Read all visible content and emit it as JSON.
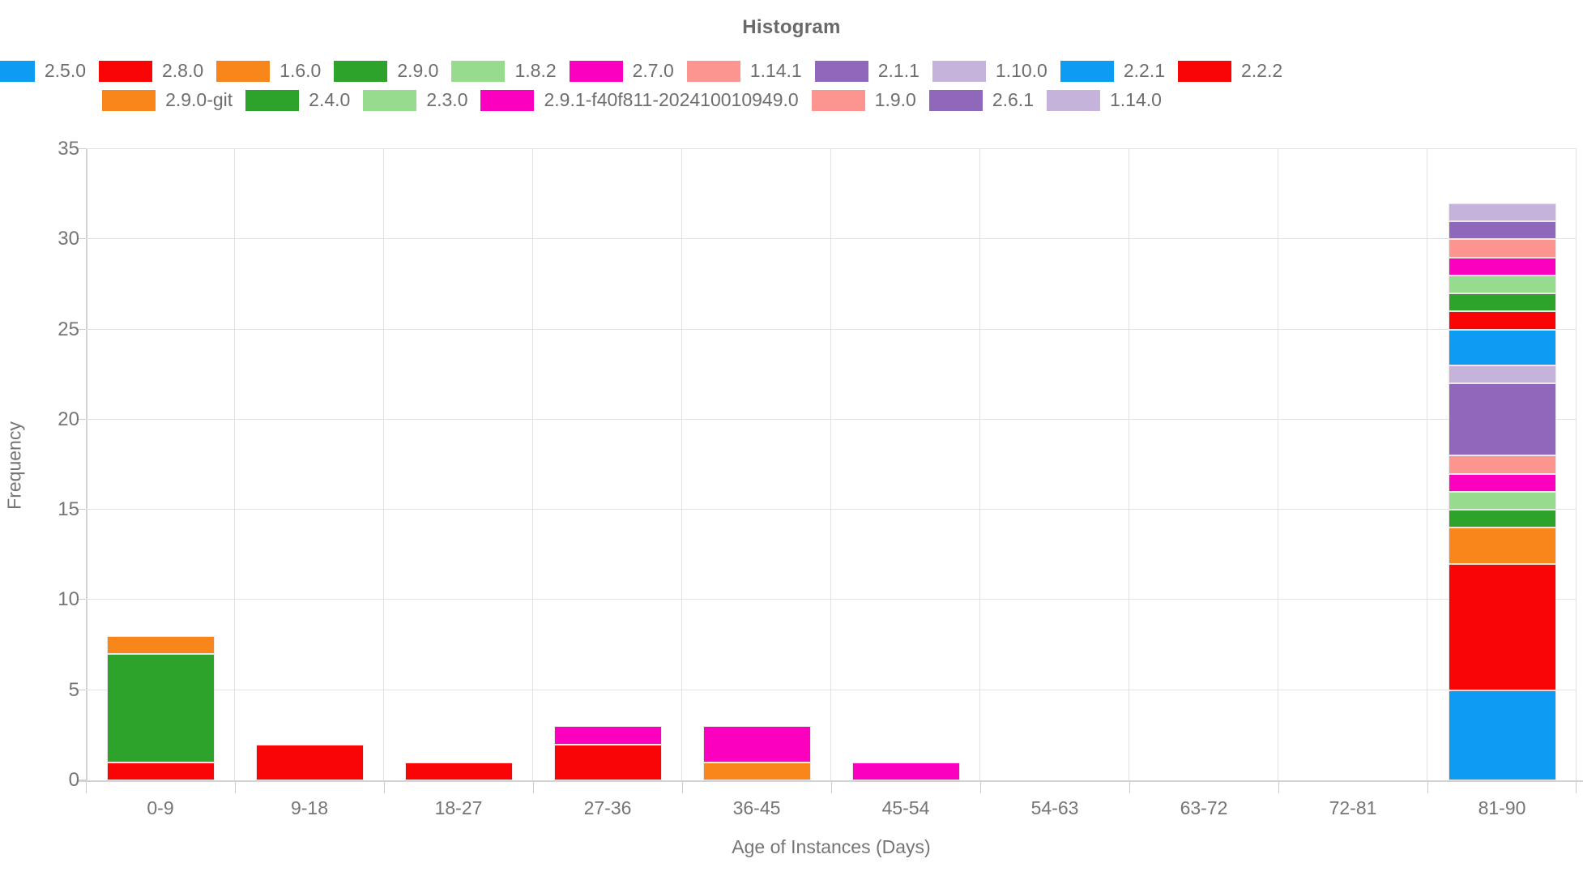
{
  "chart_data": {
    "type": "bar",
    "stacked": true,
    "title": "Histogram",
    "xlabel": "Age of Instances (Days)",
    "ylabel": "Frequency",
    "ylim": [
      0,
      35
    ],
    "yticks": [
      0,
      5,
      10,
      15,
      20,
      25,
      30,
      35
    ],
    "grid": true,
    "legend_position": "top",
    "categories": [
      "0-9",
      "9-18",
      "18-27",
      "27-36",
      "36-45",
      "45-54",
      "54-63",
      "63-72",
      "72-81",
      "81-90"
    ],
    "series": [
      {
        "name": "2.5.0",
        "color": "#0E9BF4",
        "values": [
          0,
          0,
          0,
          0,
          0,
          0,
          0,
          0,
          0,
          5
        ]
      },
      {
        "name": "2.8.0",
        "color": "#FA0505",
        "values": [
          1,
          2,
          1,
          2,
          0,
          0,
          0,
          0,
          0,
          7
        ]
      },
      {
        "name": "1.6.0",
        "color": "#F9861B",
        "values": [
          0,
          0,
          0,
          0,
          1,
          0,
          0,
          0,
          0,
          2
        ]
      },
      {
        "name": "2.9.0",
        "color": "#2EA32C",
        "values": [
          6,
          0,
          0,
          0,
          0,
          0,
          0,
          0,
          0,
          1
        ]
      },
      {
        "name": "1.8.2",
        "color": "#97DC8E",
        "values": [
          0,
          0,
          0,
          0,
          0,
          0,
          0,
          0,
          0,
          1
        ]
      },
      {
        "name": "2.7.0",
        "color": "#FC00C0",
        "values": [
          0,
          0,
          0,
          1,
          2,
          1,
          0,
          0,
          0,
          1
        ]
      },
      {
        "name": "1.14.1",
        "color": "#FC948F",
        "values": [
          0,
          0,
          0,
          0,
          0,
          0,
          0,
          0,
          0,
          1
        ]
      },
      {
        "name": "2.1.1",
        "color": "#8F68BC",
        "values": [
          0,
          0,
          0,
          0,
          0,
          0,
          0,
          0,
          0,
          4
        ]
      },
      {
        "name": "1.10.0",
        "color": "#C5B3DC",
        "values": [
          0,
          0,
          0,
          0,
          0,
          0,
          0,
          0,
          0,
          1
        ]
      },
      {
        "name": "2.2.1",
        "color": "#0E9BF4",
        "values": [
          0,
          0,
          0,
          0,
          0,
          0,
          0,
          0,
          0,
          2
        ]
      },
      {
        "name": "2.2.2",
        "color": "#FA0505",
        "values": [
          0,
          0,
          0,
          0,
          0,
          0,
          0,
          0,
          0,
          1
        ]
      },
      {
        "name": "2.9.0-git",
        "color": "#F9861B",
        "values": [
          1,
          0,
          0,
          0,
          0,
          0,
          0,
          0,
          0,
          0
        ]
      },
      {
        "name": "2.4.0",
        "color": "#2EA32C",
        "values": [
          0,
          0,
          0,
          0,
          0,
          0,
          0,
          0,
          0,
          1
        ]
      },
      {
        "name": "2.3.0",
        "color": "#97DC8E",
        "values": [
          0,
          0,
          0,
          0,
          0,
          0,
          0,
          0,
          0,
          1
        ]
      },
      {
        "name": "2.9.1-f40f811-202410010949.0",
        "color": "#FC00C0",
        "values": [
          0,
          0,
          0,
          0,
          0,
          0,
          0,
          0,
          0,
          1
        ]
      },
      {
        "name": "1.9.0",
        "color": "#FC948F",
        "values": [
          0,
          0,
          0,
          0,
          0,
          0,
          0,
          0,
          0,
          1
        ]
      },
      {
        "name": "2.6.1",
        "color": "#8F68BC",
        "values": [
          0,
          0,
          0,
          0,
          0,
          0,
          0,
          0,
          0,
          1
        ]
      },
      {
        "name": "1.14.0",
        "color": "#C5B3DC",
        "values": [
          0,
          0,
          0,
          0,
          0,
          0,
          0,
          0,
          0,
          1
        ]
      }
    ],
    "legend_rows": [
      [
        "2.5.0",
        "2.8.0",
        "1.6.0",
        "2.9.0",
        "1.8.2",
        "2.7.0",
        "1.14.1",
        "2.1.1",
        "1.10.0",
        "2.2.1",
        "2.2.2"
      ],
      [
        "2.9.0-git",
        "2.4.0",
        "2.3.0",
        "2.9.1-f40f811-202410010949.0",
        "1.9.0",
        "2.6.1",
        "1.14.0"
      ]
    ]
  }
}
